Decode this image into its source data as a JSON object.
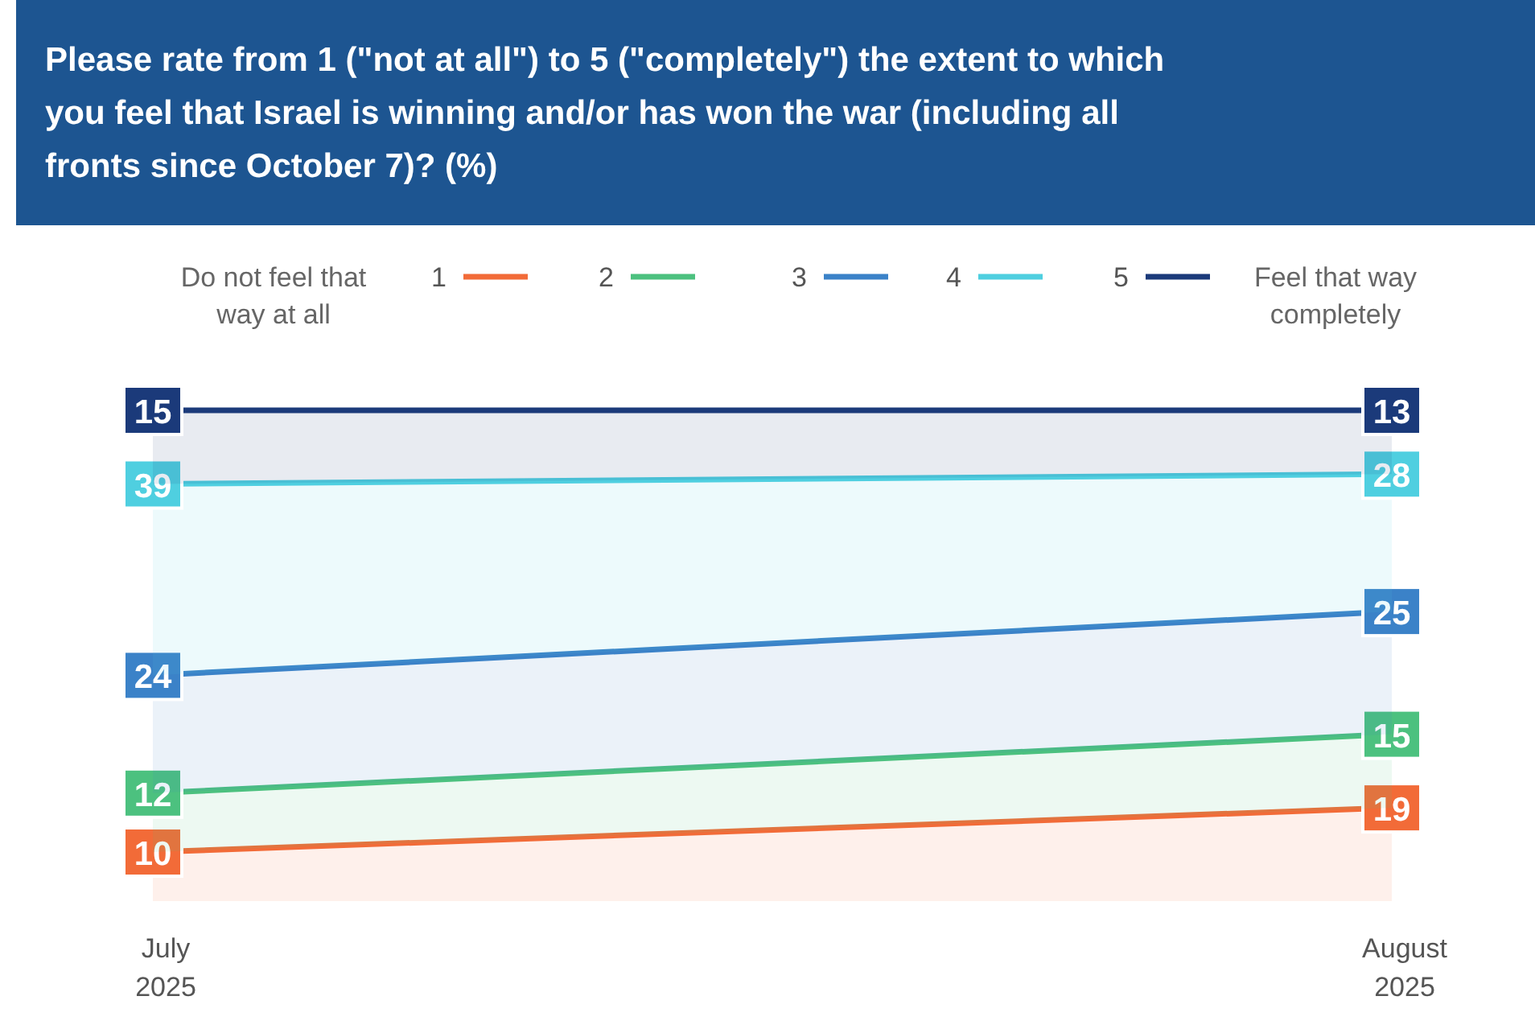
{
  "chart_data": {
    "type": "area",
    "title": "Please rate from 1 (\"not at all\") to 5 (\"completely\") the extent to which you feel that Israel is winning and/or has won the war (including all fronts since October 7)? (%)",
    "categories": [
      "July 2025",
      "August 2025"
    ],
    "stacked": true,
    "data_labels": true,
    "legend": "top",
    "tick_labels": "x",
    "marker": "square",
    "line_style": "solid",
    "annotations": [
      "Do not feel that way at all",
      "Feel that way completely"
    ],
    "series": [
      {
        "name": "1",
        "color": "#f26b38",
        "values": [
          10,
          19
        ]
      },
      {
        "name": "2",
        "color": "#4cc17f",
        "values": [
          12,
          15
        ]
      },
      {
        "name": "3",
        "color": "#3b82c8",
        "values": [
          24,
          25
        ]
      },
      {
        "name": "4",
        "color": "#4fcfe0",
        "values": [
          39,
          28
        ]
      },
      {
        "name": "5",
        "color": "#1b3a7a",
        "values": [
          15,
          13
        ]
      }
    ]
  }
}
